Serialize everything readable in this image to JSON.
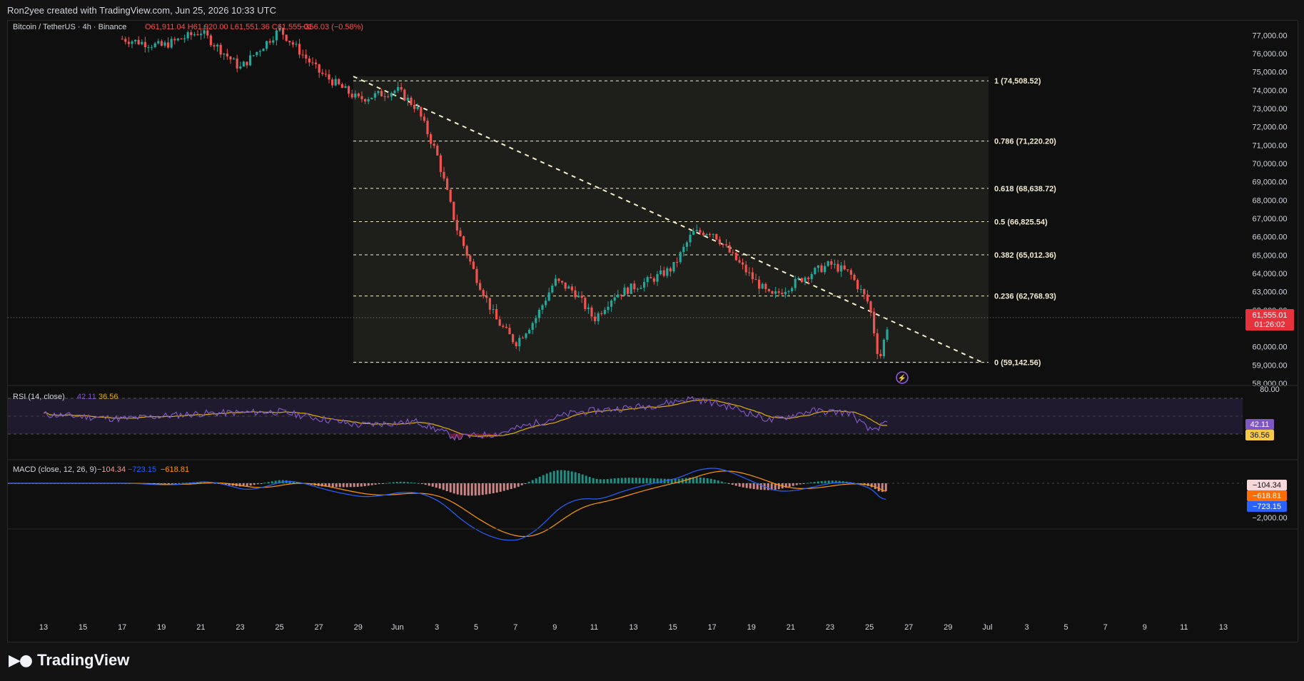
{
  "header": {
    "credit": "Ron2yee created with TradingView.com, Jun 25, 2026 10:33 UTC"
  },
  "legend": {
    "symbol": "Bitcoin / TetherUS · 4h · Binance",
    "ohlc": "O61,911.04 H61,920.00 L61,551.36 C61,555.01",
    "change": "−356.03 (−0.58%)"
  },
  "price_axis": {
    "labels": [
      "77,000.00",
      "76,000.00",
      "75,000.00",
      "74,000.00",
      "73,000.00",
      "72,000.00",
      "71,000.00",
      "70,000.00",
      "69,000.00",
      "68,000.00",
      "67,000.00",
      "66,000.00",
      "65,000.00",
      "64,000.00",
      "63,000.00",
      "62,000.00",
      "60,000.00",
      "59,000.00",
      "58,000.00"
    ],
    "last_price": "61,555.01",
    "countdown": "01:26:02"
  },
  "fib": {
    "levels": [
      {
        "label": "1 (74,508.52)"
      },
      {
        "label": "0.786 (71,220.20)"
      },
      {
        "label": "0.618 (68,638.72)"
      },
      {
        "label": "0.5 (66,825.54)"
      },
      {
        "label": "0.382 (65,012.36)"
      },
      {
        "label": "0.236 (62,768.93)"
      },
      {
        "label": "0 (59,142.56)"
      }
    ]
  },
  "rsi": {
    "title": "RSI (14, close)",
    "value": "42.11",
    "ma": "36.56",
    "axis_top": "80.00"
  },
  "macd": {
    "title": "MACD (close, 12, 26, 9)",
    "hist": "−104.34",
    "macd": "−723.15",
    "signal": "−618.81",
    "axis_label": "−2,000.00"
  },
  "time_axis": {
    "labels": [
      "13",
      "15",
      "17",
      "19",
      "21",
      "23",
      "25",
      "27",
      "29",
      "Jun",
      "3",
      "5",
      "7",
      "9",
      "11",
      "13",
      "15",
      "17",
      "19",
      "21",
      "23",
      "25",
      "27",
      "29",
      "Jul",
      "3",
      "5",
      "7",
      "9",
      "11",
      "13"
    ]
  },
  "brand": {
    "name": "TradingView"
  },
  "colors": {
    "up": "#26a69a",
    "down": "#ef5350",
    "fib": "#f5f0c8",
    "rsi": "#7e57c2",
    "macd": "#2962ff",
    "signal": "#ff9800"
  },
  "chart_data": {
    "type": "candlestick",
    "title": "Bitcoin / TetherUS · 4h · Binance",
    "ylim": [
      58000,
      77400
    ],
    "price_path": [
      {
        "date": "May 17",
        "price": 76800
      },
      {
        "date": "May 19",
        "price": 76400
      },
      {
        "date": "May 21",
        "price": 77200
      },
      {
        "date": "May 23",
        "price": 75200
      },
      {
        "date": "May 25",
        "price": 77300
      },
      {
        "date": "May 27",
        "price": 75000
      },
      {
        "date": "May 29",
        "price": 73500
      },
      {
        "date": "May 31",
        "price": 74000
      },
      {
        "date": "Jun 1",
        "price": 73000
      },
      {
        "date": "Jun 2",
        "price": 70500
      },
      {
        "date": "Jun 3",
        "price": 66500
      },
      {
        "date": "Jun 4",
        "price": 63800
      },
      {
        "date": "Jun 5",
        "price": 61500
      },
      {
        "date": "Jun 6",
        "price": 60200
      },
      {
        "date": "Jun 7",
        "price": 61500
      },
      {
        "date": "Jun 8",
        "price": 63600
      },
      {
        "date": "Jun 9",
        "price": 63000
      },
      {
        "date": "Jun 10",
        "price": 61500
      },
      {
        "date": "Jun 11",
        "price": 62800
      },
      {
        "date": "Jun 13",
        "price": 63700
      },
      {
        "date": "Jun 14",
        "price": 64300
      },
      {
        "date": "Jun 15",
        "price": 66200
      },
      {
        "date": "Jun 16",
        "price": 66300
      },
      {
        "date": "Jun 17",
        "price": 65000
      },
      {
        "date": "Jun 18",
        "price": 63800
      },
      {
        "date": "Jun 19",
        "price": 62700
      },
      {
        "date": "Jun 21",
        "price": 64000
      },
      {
        "date": "Jun 22",
        "price": 64500
      },
      {
        "date": "Jun 23",
        "price": 64000
      },
      {
        "date": "Jun 24",
        "price": 62300
      },
      {
        "date": "Jun 24 12h",
        "price": 59200
      },
      {
        "date": "Jun 25",
        "price": 61555
      }
    ],
    "fib_retracement": [
      {
        "level": 1,
        "price": 74508.52
      },
      {
        "level": 0.786,
        "price": 71220.2
      },
      {
        "level": 0.618,
        "price": 68638.72
      },
      {
        "level": 0.5,
        "price": 66825.54
      },
      {
        "level": 0.382,
        "price": 65012.36
      },
      {
        "level": 0.236,
        "price": 62768.93
      },
      {
        "level": 0,
        "price": 59142.56
      }
    ],
    "rsi_path": [
      {
        "date": "May 13",
        "value": 52
      },
      {
        "date": "May 17",
        "value": 47
      },
      {
        "date": "May 21",
        "value": 53
      },
      {
        "date": "May 25",
        "value": 55
      },
      {
        "date": "May 29",
        "value": 40
      },
      {
        "date": "Jun 1",
        "value": 44
      },
      {
        "date": "Jun 3",
        "value": 26
      },
      {
        "date": "Jun 5",
        "value": 30
      },
      {
        "date": "Jun 7",
        "value": 42
      },
      {
        "date": "Jun 9",
        "value": 54
      },
      {
        "date": "Jun 11",
        "value": 58
      },
      {
        "date": "Jun 13",
        "value": 62
      },
      {
        "date": "Jun 15",
        "value": 70
      },
      {
        "date": "Jun 17",
        "value": 60
      },
      {
        "date": "Jun 19",
        "value": 45
      },
      {
        "date": "Jun 21",
        "value": 56
      },
      {
        "date": "Jun 23",
        "value": 54
      },
      {
        "date": "Jun 24",
        "value": 34
      },
      {
        "date": "Jun 25",
        "value": 42.11
      }
    ],
    "rsi_ma_last": 36.56,
    "macd_last": -723.15,
    "signal_last": -618.81,
    "hist_last": -104.34
  }
}
